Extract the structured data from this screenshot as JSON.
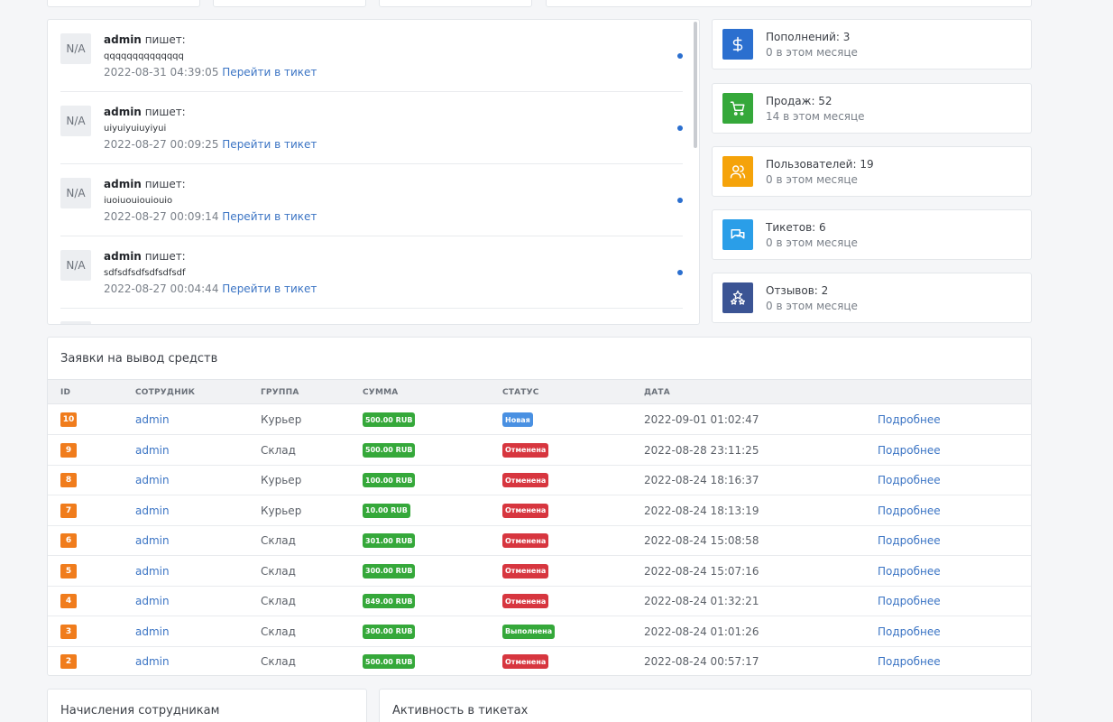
{
  "tickets_feed": [
    {
      "avatar": "N/A",
      "user": "admin",
      "verb": "пишет:",
      "message": "qqqqqqqqqqqqqq",
      "date": "2022-08-31 04:39:05",
      "link": "Перейти в тикет"
    },
    {
      "avatar": "N/A",
      "user": "admin",
      "verb": "пишет:",
      "message": "uiyuiyuiuyiyui",
      "date": "2022-08-27 00:09:25",
      "link": "Перейти в тикет"
    },
    {
      "avatar": "N/A",
      "user": "admin",
      "verb": "пишет:",
      "message": "iuoiuouiouiouio",
      "date": "2022-08-27 00:09:14",
      "link": "Перейти в тикет"
    },
    {
      "avatar": "N/A",
      "user": "admin",
      "verb": "пишет:",
      "message": "sdfsdfsdfsdfsdfsdf",
      "date": "2022-08-27 00:04:44",
      "link": "Перейти в тикет"
    }
  ],
  "stats": [
    {
      "title": "Пополнений: 3",
      "sub": "0 в этом месяце",
      "icon": "dollar-icon",
      "color": "#2b6fcf"
    },
    {
      "title": "Продаж: 52",
      "sub": "14 в этом месяце",
      "icon": "cart-icon",
      "color": "#35a83a"
    },
    {
      "title": "Пользователей: 19",
      "sub": "0 в этом месяце",
      "icon": "users-icon",
      "color": "#f5a30a"
    },
    {
      "title": "Тикетов: 6",
      "sub": "0 в этом месяце",
      "icon": "chat-icon",
      "color": "#2a9ee8"
    },
    {
      "title": "Отзывов: 2",
      "sub": "0 в этом месяце",
      "icon": "stars-icon",
      "color": "#3b5494"
    }
  ],
  "withdraw": {
    "title": "Заявки на вывод средств",
    "headers": {
      "id": "ID",
      "employee": "СОТРУДНИК",
      "group": "ГРУППА",
      "amount": "СУММА",
      "status": "СТАТУС",
      "date": "ДАТА"
    },
    "rows": [
      {
        "id": "10",
        "employee": "admin",
        "group": "Курьер",
        "amount": "500.00 RUB",
        "status": "Новая",
        "status_color": "blue",
        "date": "2022-09-01 01:02:47",
        "action": "Подробнее"
      },
      {
        "id": "9",
        "employee": "admin",
        "group": "Склад",
        "amount": "500.00 RUB",
        "status": "Отменена",
        "status_color": "red",
        "date": "2022-08-28 23:11:25",
        "action": "Подробнее"
      },
      {
        "id": "8",
        "employee": "admin",
        "group": "Курьер",
        "amount": "100.00 RUB",
        "status": "Отменена",
        "status_color": "red",
        "date": "2022-08-24 18:16:37",
        "action": "Подробнее"
      },
      {
        "id": "7",
        "employee": "admin",
        "group": "Курьер",
        "amount": "10.00 RUB",
        "status": "Отменена",
        "status_color": "red",
        "date": "2022-08-24 18:13:19",
        "action": "Подробнее"
      },
      {
        "id": "6",
        "employee": "admin",
        "group": "Склад",
        "amount": "301.00 RUB",
        "status": "Отменена",
        "status_color": "red",
        "date": "2022-08-24 15:08:58",
        "action": "Подробнее"
      },
      {
        "id": "5",
        "employee": "admin",
        "group": "Склад",
        "amount": "300.00 RUB",
        "status": "Отменена",
        "status_color": "red",
        "date": "2022-08-24 15:07:16",
        "action": "Подробнее"
      },
      {
        "id": "4",
        "employee": "admin",
        "group": "Склад",
        "amount": "849.00 RUB",
        "status": "Отменена",
        "status_color": "red",
        "date": "2022-08-24 01:32:21",
        "action": "Подробнее"
      },
      {
        "id": "3",
        "employee": "admin",
        "group": "Склад",
        "amount": "300.00 RUB",
        "status": "Выполнена",
        "status_color": "green",
        "date": "2022-08-24 01:01:26",
        "action": "Подробнее"
      },
      {
        "id": "2",
        "employee": "admin",
        "group": "Склад",
        "amount": "500.00 RUB",
        "status": "Отменена",
        "status_color": "red",
        "date": "2022-08-24 00:57:17",
        "action": "Подробнее"
      }
    ]
  },
  "bottom": {
    "accruals_title": "Начисления сотрудникам",
    "activity_title": "Активность в тикетах"
  }
}
